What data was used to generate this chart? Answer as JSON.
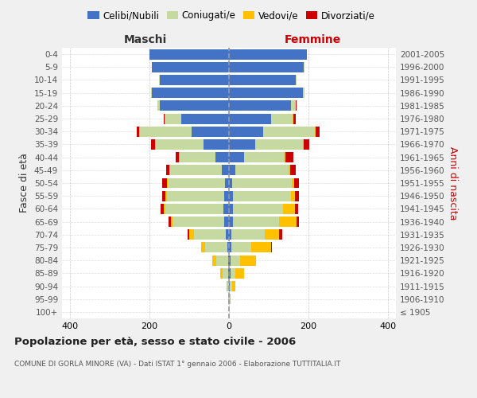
{
  "age_groups": [
    "100+",
    "95-99",
    "90-94",
    "85-89",
    "80-84",
    "75-79",
    "70-74",
    "65-69",
    "60-64",
    "55-59",
    "50-54",
    "45-49",
    "40-44",
    "35-39",
    "30-34",
    "25-29",
    "20-24",
    "15-19",
    "10-14",
    "5-9",
    "0-4"
  ],
  "birth_years": [
    "≤ 1905",
    "1906-1910",
    "1911-1915",
    "1916-1920",
    "1921-1925",
    "1926-1930",
    "1931-1935",
    "1936-1940",
    "1941-1945",
    "1946-1950",
    "1951-1955",
    "1956-1960",
    "1961-1965",
    "1966-1970",
    "1971-1975",
    "1976-1980",
    "1981-1985",
    "1986-1990",
    "1991-1995",
    "1996-2000",
    "2001-2005"
  ],
  "male": {
    "celibi": [
      0,
      0,
      0,
      2,
      3,
      5,
      8,
      12,
      15,
      12,
      10,
      18,
      35,
      65,
      95,
      120,
      175,
      195,
      175,
      195,
      200
    ],
    "coniugati": [
      0,
      2,
      5,
      15,
      30,
      55,
      80,
      130,
      145,
      145,
      145,
      130,
      90,
      120,
      130,
      40,
      5,
      2,
      2,
      0,
      0
    ],
    "vedovi": [
      0,
      0,
      2,
      5,
      10,
      10,
      12,
      5,
      5,
      3,
      2,
      2,
      2,
      2,
      2,
      2,
      0,
      0,
      0,
      0,
      0
    ],
    "divorziati": [
      0,
      0,
      0,
      0,
      0,
      0,
      5,
      5,
      8,
      8,
      12,
      8,
      8,
      10,
      5,
      2,
      0,
      0,
      0,
      0,
      0
    ]
  },
  "female": {
    "nubili": [
      0,
      0,
      2,
      3,
      3,
      5,
      5,
      10,
      10,
      10,
      8,
      15,
      38,
      65,
      85,
      105,
      155,
      185,
      168,
      188,
      195
    ],
    "coniugate": [
      0,
      2,
      5,
      12,
      25,
      50,
      85,
      115,
      125,
      145,
      150,
      135,
      100,
      120,
      130,
      55,
      12,
      5,
      2,
      2,
      0
    ],
    "vedove": [
      0,
      2,
      8,
      22,
      40,
      50,
      35,
      45,
      30,
      10,
      5,
      3,
      3,
      2,
      2,
      2,
      0,
      0,
      0,
      0,
      0
    ],
    "divorziate": [
      0,
      0,
      0,
      0,
      0,
      2,
      8,
      5,
      8,
      10,
      12,
      15,
      20,
      15,
      10,
      5,
      2,
      0,
      0,
      0,
      0
    ]
  },
  "colors": {
    "celibi": "#4472c4",
    "coniugati": "#c5d9a0",
    "vedovi": "#ffc000",
    "divorziati": "#cc0000"
  },
  "legend_labels": [
    "Celibi/Nubili",
    "Coniugati/e",
    "Vedovi/e",
    "Divorziati/e"
  ],
  "title": "Popolazione per età, sesso e stato civile - 2006",
  "subtitle": "COMUNE DI GORLA MINORE (VA) - Dati ISTAT 1° gennaio 2006 - Elaborazione TUTTITALIA.IT",
  "ylabel_left": "Fasce di età",
  "ylabel_right": "Anni di nascita",
  "xlabel_left": "Maschi",
  "xlabel_right": "Femmine",
  "xlim": 420,
  "bg_color": "#f0f0f0",
  "bar_bg": "#ffffff"
}
